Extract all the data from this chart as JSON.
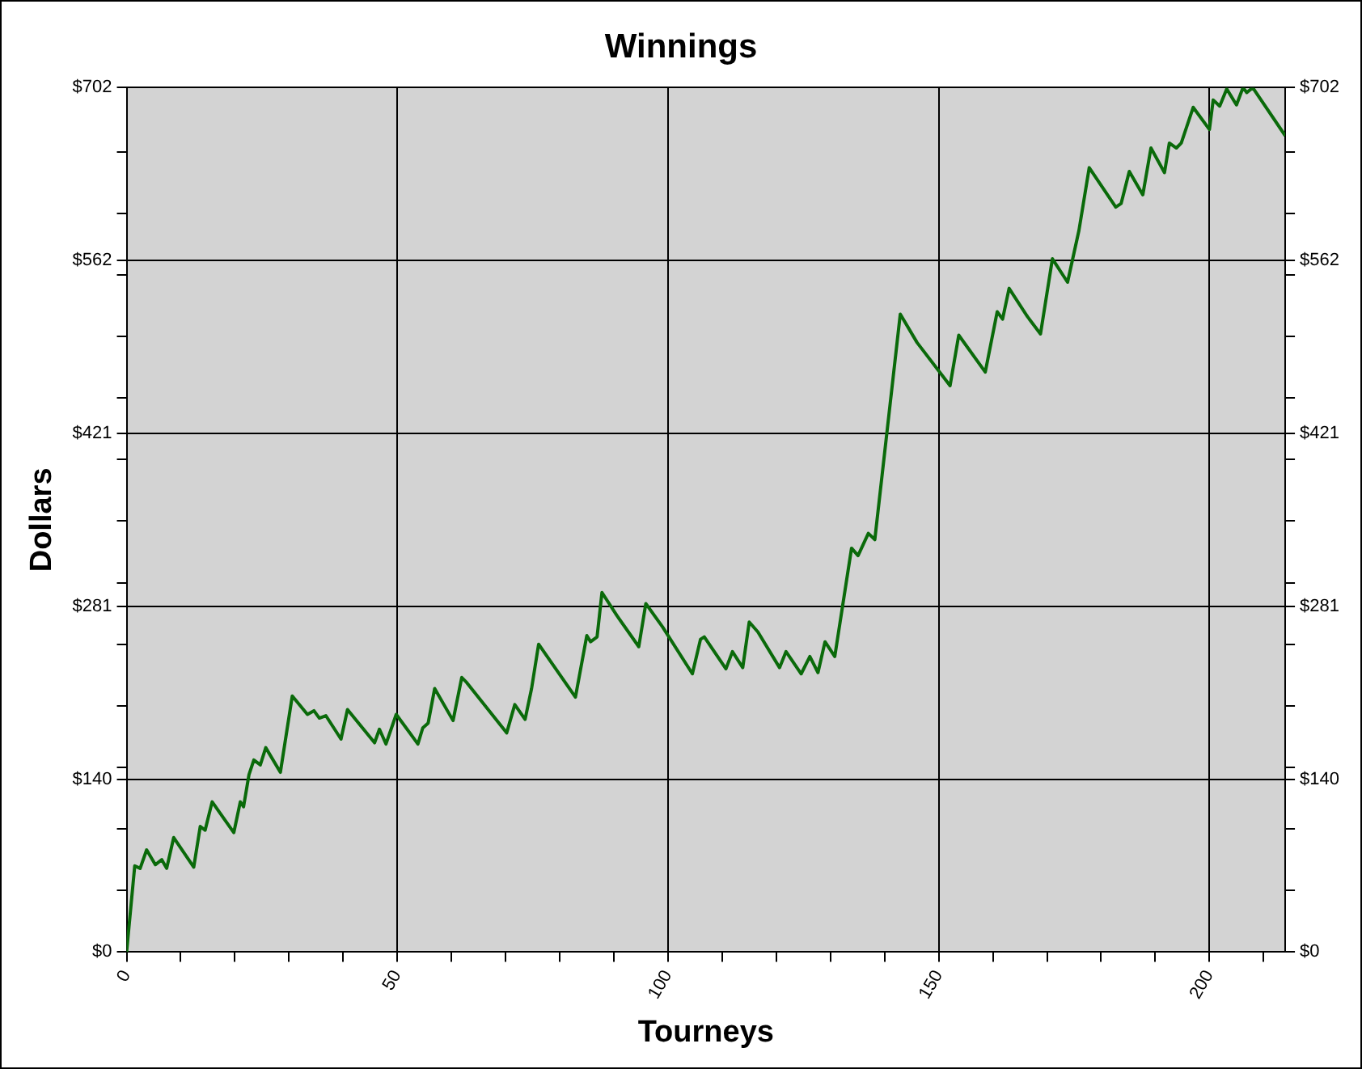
{
  "chart_data": {
    "type": "line",
    "title": "Winnings",
    "xlabel": "Tourneys",
    "ylabel": "Dollars",
    "x": [
      0,
      1.5,
      2.5,
      3.7,
      5.3,
      6.5,
      7.4,
      8.7,
      12.4,
      13.6,
      14.5,
      15.8,
      19.8,
      21,
      21.6,
      22.6,
      23.5,
      24.7,
      25.7,
      28.4,
      30.6,
      33.4,
      34.6,
      35.6,
      36.8,
      39.6,
      40.8,
      45.8,
      46.7,
      47.9,
      49.8,
      53.8,
      54.7,
      55.7,
      56.9,
      60.3,
      61.9,
      62.8,
      70.2,
      71.7,
      73.6,
      74.8,
      76.1,
      78.8,
      82.9,
      85,
      85.7,
      86.9,
      87.8,
      90.6,
      94.6,
      95.9,
      99,
      104.5,
      106,
      106.7,
      110.7,
      111.9,
      113.8,
      115,
      116.6,
      120.6,
      121.8,
      124.6,
      126.2,
      127.7,
      129,
      130.8,
      133.9,
      135.1,
      137,
      138.2,
      142.9,
      146,
      152.1,
      153.7,
      158.6,
      160.8,
      161.8,
      163,
      166.4,
      168.8,
      171,
      173.8,
      175.9,
      177.8,
      182.7,
      183.7,
      185.2,
      187.7,
      189.2,
      191.7,
      192.6,
      193.9,
      194.8,
      197,
      200,
      200.7,
      201.9,
      203.2,
      205,
      206.2,
      206.9,
      208,
      214
    ],
    "series": [
      {
        "color": "#0a6a0a",
        "axis": "y",
        "values": [
          0,
          70,
          68,
          83,
          71,
          75,
          68,
          93,
          69,
          102,
          99,
          122,
          97,
          122,
          118,
          144,
          156,
          152,
          166,
          146,
          208,
          193,
          196,
          190,
          192,
          173,
          197,
          170,
          181,
          169,
          193,
          169,
          182,
          186,
          214,
          188,
          223,
          219,
          178,
          201,
          189,
          214,
          250,
          233,
          207,
          257,
          252,
          256,
          292,
          273,
          248,
          283,
          264,
          226,
          254,
          256,
          230,
          244,
          231,
          268,
          260,
          231,
          244,
          226,
          240,
          227,
          252,
          240,
          328,
          322,
          340,
          335,
          518,
          495,
          460,
          501,
          471,
          520,
          514,
          539,
          516,
          502,
          563,
          544,
          586,
          637,
          605,
          608,
          634,
          615,
          653,
          633,
          657,
          653,
          657,
          686,
          668,
          692,
          687,
          701,
          688,
          702,
          698,
          702,
          663
        ]
      }
    ],
    "xlim": [
      0,
      214
    ],
    "xticks": [
      0,
      {
        "value": 10,
        "label": null
      },
      {
        "value": 20,
        "label": null
      },
      {
        "value": 30,
        "label": null
      },
      {
        "value": 40,
        "label": null
      },
      50,
      {
        "value": 60,
        "label": null
      },
      {
        "value": 70,
        "label": null
      },
      {
        "value": 80,
        "label": null
      },
      {
        "value": 90,
        "label": null
      },
      100,
      {
        "value": 110,
        "label": null
      },
      {
        "value": 120,
        "label": null
      },
      {
        "value": 130,
        "label": null
      },
      {
        "value": 140,
        "label": null
      },
      150,
      {
        "value": 160,
        "label": null
      },
      {
        "value": 170,
        "label": null
      },
      {
        "value": 180,
        "label": null
      },
      {
        "value": 190,
        "label": null
      },
      200,
      {
        "value": 210,
        "label": null
      }
    ],
    "ylim": [
      0,
      702
    ],
    "yticks": [
      {
        "value": 0,
        "label": "$0"
      },
      {
        "value": 50,
        "label": null
      },
      {
        "value": 100,
        "label": null
      },
      {
        "value": 140.4,
        "label": "$140"
      },
      {
        "value": 150,
        "label": null
      },
      {
        "value": 200,
        "label": null
      },
      {
        "value": 250,
        "label": null
      },
      {
        "value": 280.8,
        "label": "$281"
      },
      {
        "value": 300,
        "label": null
      },
      {
        "value": 350,
        "label": null
      },
      {
        "value": 400,
        "label": null
      },
      {
        "value": 421.2,
        "label": "$421"
      },
      {
        "value": 450,
        "label": null
      },
      {
        "value": 500,
        "label": null
      },
      {
        "value": 550,
        "label": null
      },
      {
        "value": 561.6,
        "label": "$562"
      },
      {
        "value": 600,
        "label": null
      },
      {
        "value": 650,
        "label": null
      },
      {
        "value": 702,
        "label": "$702"
      }
    ],
    "y2lim": [
      0,
      702
    ],
    "y2ticks": [
      {
        "value": 0,
        "label": "$0"
      },
      {
        "value": 50,
        "label": null
      },
      {
        "value": 100,
        "label": null
      },
      {
        "value": 140.4,
        "label": "$140"
      },
      {
        "value": 150,
        "label": null
      },
      {
        "value": 200,
        "label": null
      },
      {
        "value": 250,
        "label": null
      },
      {
        "value": 280.8,
        "label": "$281"
      },
      {
        "value": 300,
        "label": null
      },
      {
        "value": 350,
        "label": null
      },
      {
        "value": 400,
        "label": null
      },
      {
        "value": 421.2,
        "label": "$421"
      },
      {
        "value": 450,
        "label": null
      },
      {
        "value": 500,
        "label": null
      },
      {
        "value": 550,
        "label": null
      },
      {
        "value": 561.6,
        "label": "$562"
      },
      {
        "value": 600,
        "label": null
      },
      {
        "value": 650,
        "label": null
      },
      {
        "value": 702,
        "label": "$702"
      }
    ],
    "grid": true,
    "legend": false,
    "marker": "none",
    "line_style": "solid"
  }
}
